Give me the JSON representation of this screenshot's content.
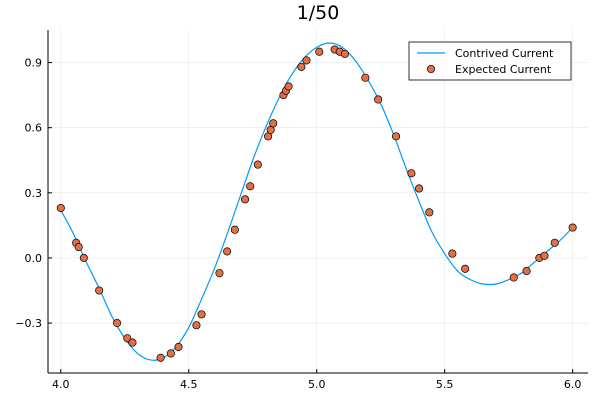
{
  "chart_data": {
    "type": "scatter",
    "title": "1/50",
    "xlabel": "",
    "ylabel": "",
    "xlim": [
      3.95,
      6.06
    ],
    "ylim": [
      -0.53,
      1.05
    ],
    "x_ticks": [
      4.0,
      4.5,
      5.0,
      5.5,
      6.0
    ],
    "x_tick_labels": [
      "4.0",
      "4.5",
      "5.0",
      "5.5",
      "6.0"
    ],
    "y_ticks": [
      -0.3,
      0.0,
      0.3,
      0.6,
      0.9
    ],
    "y_tick_labels": [
      "−0.3",
      "0.0",
      "0.3",
      "0.6",
      "0.9"
    ],
    "grid": true,
    "legend_position": "top-right",
    "series": [
      {
        "name": "Contrived Current",
        "kind": "line",
        "color": "#009AFA",
        "x": [
          4.0,
          4.05,
          4.1,
          4.15,
          4.2,
          4.25,
          4.3,
          4.35,
          4.4,
          4.45,
          4.5,
          4.55,
          4.6,
          4.65,
          4.7,
          4.75,
          4.8,
          4.85,
          4.9,
          4.95,
          5.0,
          5.05,
          5.1,
          5.15,
          5.2,
          5.25,
          5.3,
          5.35,
          5.4,
          5.45,
          5.5,
          5.55,
          5.6,
          5.65,
          5.7,
          5.75,
          5.8,
          5.85,
          5.9,
          5.95,
          6.0
        ],
        "y": [
          0.22,
          0.11,
          -0.02,
          -0.14,
          -0.27,
          -0.37,
          -0.44,
          -0.47,
          -0.46,
          -0.41,
          -0.32,
          -0.19,
          -0.05,
          0.11,
          0.28,
          0.45,
          0.6,
          0.73,
          0.84,
          0.92,
          0.97,
          0.99,
          0.97,
          0.91,
          0.82,
          0.71,
          0.57,
          0.41,
          0.26,
          0.12,
          0.02,
          -0.06,
          -0.1,
          -0.12,
          -0.12,
          -0.1,
          -0.07,
          -0.02,
          0.03,
          0.08,
          0.14
        ]
      },
      {
        "name": "Expected Current",
        "kind": "scatter",
        "color": "#E26F46",
        "x": [
          4.0,
          4.06,
          4.07,
          4.09,
          4.15,
          4.22,
          4.26,
          4.28,
          4.39,
          4.43,
          4.46,
          4.53,
          4.55,
          4.62,
          4.65,
          4.68,
          4.72,
          4.74,
          4.77,
          4.81,
          4.82,
          4.83,
          4.87,
          4.88,
          4.89,
          4.94,
          4.96,
          5.01,
          5.07,
          5.09,
          5.11,
          5.19,
          5.24,
          5.31,
          5.37,
          5.4,
          5.44,
          5.53,
          5.58,
          5.77,
          5.82,
          5.87,
          5.89,
          5.93,
          6.0
        ],
        "y": [
          0.23,
          0.07,
          0.05,
          0.0,
          -0.15,
          -0.3,
          -0.37,
          -0.39,
          -0.46,
          -0.44,
          -0.41,
          -0.31,
          -0.26,
          -0.07,
          0.03,
          0.13,
          0.27,
          0.33,
          0.43,
          0.56,
          0.59,
          0.62,
          0.75,
          0.77,
          0.79,
          0.88,
          0.91,
          0.95,
          0.96,
          0.95,
          0.94,
          0.83,
          0.73,
          0.56,
          0.39,
          0.32,
          0.21,
          0.02,
          -0.05,
          -0.09,
          -0.06,
          0.0,
          0.01,
          0.07,
          0.14
        ]
      }
    ]
  }
}
